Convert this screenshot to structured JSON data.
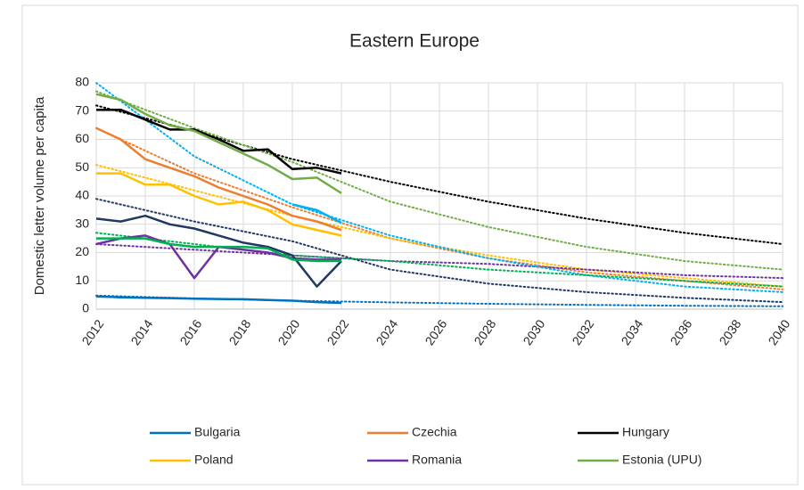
{
  "chart_data": {
    "type": "line",
    "title": "Eastern Europe",
    "y_label": "Domestic letter volume per capita",
    "x": [
      2012,
      2013,
      2014,
      2015,
      2016,
      2017,
      2018,
      2019,
      2020,
      2021,
      2022
    ],
    "xlim": [
      2012,
      2040
    ],
    "xticks": [
      2012,
      2014,
      2016,
      2018,
      2020,
      2022,
      2024,
      2026,
      2028,
      2030,
      2032,
      2034,
      2036,
      2038,
      2040
    ],
    "ylim": [
      0,
      80
    ],
    "yticks": [
      0,
      10,
      20,
      30,
      40,
      50,
      60,
      70,
      80
    ],
    "grid": true,
    "legend": "bottom",
    "series": [
      {
        "name": "Bulgaria",
        "color": "#0070c0",
        "values": [
          4.5,
          4.2,
          4,
          3.9,
          3.7,
          3.6,
          3.5,
          3.2,
          3,
          2.5,
          2.2
        ]
      },
      {
        "name": "Czechia",
        "color": "#ed7d31",
        "values": [
          64,
          60,
          53,
          50,
          47,
          43,
          40,
          37,
          33,
          31,
          28
        ]
      },
      {
        "name": "Hungary",
        "color": "#000000",
        "values": [
          70.5,
          70.5,
          67,
          63.5,
          63.5,
          60,
          56,
          56.5,
          49.5,
          50,
          48
        ]
      },
      {
        "name": "Poland",
        "color": "#ffc000",
        "values": [
          48,
          48,
          44,
          44,
          40,
          37,
          38,
          35,
          30,
          28,
          26
        ]
      },
      {
        "name": "Romania",
        "color": "#7030a0",
        "values": [
          23,
          25,
          26,
          23,
          11,
          22,
          21,
          20,
          18,
          17.5,
          17.5
        ]
      },
      {
        "name": "Estonia (UPU)",
        "color": "#70ad47",
        "values": [
          76,
          74,
          69,
          65,
          63,
          59,
          55,
          51,
          46,
          46.5,
          41
        ]
      },
      {
        "color": "#1f3864",
        "values": [
          32,
          31,
          33,
          30,
          28.5,
          26,
          23.5,
          22,
          19,
          8,
          17
        ]
      },
      {
        "color": "#00b0f0",
        "values": [
          null,
          null,
          null,
          null,
          null,
          null,
          null,
          null,
          37,
          35,
          30.5
        ]
      },
      {
        "color": "#00b050",
        "values": [
          25,
          25,
          25,
          23,
          22,
          22,
          22,
          21.5,
          17.5,
          17,
          17
        ]
      },
      {
        "color": "#0070c0",
        "style": "dotted",
        "x": [
          2012,
          2016,
          2020,
          2024,
          2028,
          2032,
          2036,
          2040
        ],
        "values": [
          4.8,
          3.8,
          3,
          2.4,
          1.9,
          1.5,
          1.2,
          1
        ]
      },
      {
        "color": "#ed7d31",
        "style": "dotted",
        "x": [
          2012,
          2016,
          2020,
          2024,
          2028,
          2032,
          2036,
          2040
        ],
        "values": [
          64,
          48,
          36,
          25,
          18,
          13,
          10,
          7
        ]
      },
      {
        "color": "#000000",
        "style": "dotted",
        "x": [
          2012,
          2016,
          2020,
          2024,
          2028,
          2032,
          2036,
          2040
        ],
        "values": [
          72,
          63,
          53,
          45,
          38,
          32,
          27,
          23
        ]
      },
      {
        "color": "#ffc000",
        "style": "dotted",
        "x": [
          2012,
          2016,
          2020,
          2024,
          2028,
          2032,
          2036,
          2040
        ],
        "values": [
          51,
          42,
          33,
          25,
          19,
          14,
          11,
          8
        ]
      },
      {
        "color": "#7030a0",
        "style": "dotted",
        "x": [
          2012,
          2016,
          2020,
          2024,
          2028,
          2032,
          2036,
          2040
        ],
        "values": [
          23,
          21,
          19,
          17,
          16,
          14,
          12,
          11
        ]
      },
      {
        "color": "#70ad47",
        "style": "dotted",
        "x": [
          2012,
          2016,
          2020,
          2024,
          2028,
          2032,
          2036,
          2040
        ],
        "values": [
          77,
          64,
          52,
          38,
          29,
          22,
          17,
          14
        ]
      },
      {
        "color": "#1f3864",
        "style": "dotted",
        "x": [
          2012,
          2016,
          2020,
          2024,
          2028,
          2032,
          2036,
          2040
        ],
        "values": [
          39,
          31,
          24,
          14,
          9,
          6,
          4,
          2.5
        ]
      },
      {
        "color": "#00b0f0",
        "style": "dotted",
        "x": [
          2012,
          2016,
          2020,
          2024,
          2028,
          2032,
          2036,
          2040
        ],
        "values": [
          80,
          54,
          37,
          26,
          18,
          12,
          8,
          6
        ]
      },
      {
        "color": "#00b050",
        "style": "dotted",
        "x": [
          2012,
          2016,
          2020,
          2024,
          2028,
          2032,
          2036,
          2040
        ],
        "values": [
          27,
          23,
          19,
          17,
          14,
          12,
          10,
          8
        ]
      }
    ]
  }
}
